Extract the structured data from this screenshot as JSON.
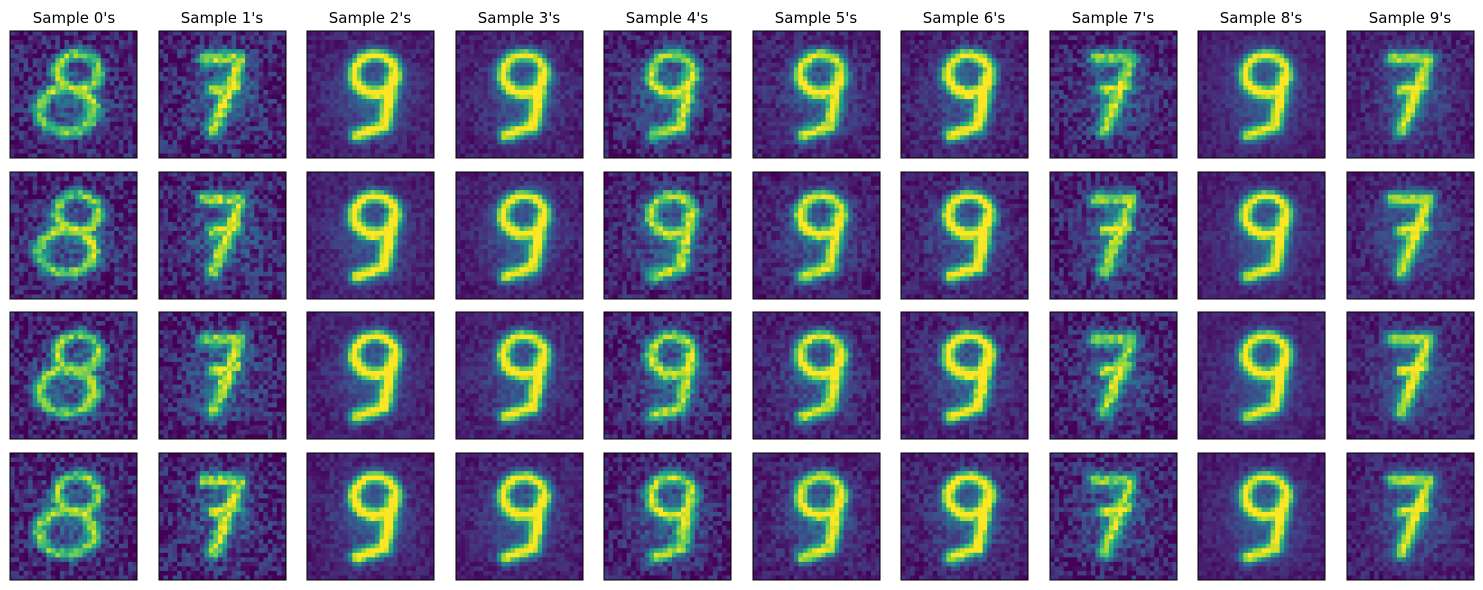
{
  "chart_data": {
    "type": "heatmap",
    "layout": {
      "rows": 4,
      "cols": 10
    },
    "image_size": [
      28,
      28
    ],
    "colormap": "viridis",
    "axes_ticks": "none",
    "columns": [
      {
        "title": "Sample 0's",
        "digit_style": "open-8",
        "brightness": 0.72,
        "noise": 0.3,
        "seed": 11
      },
      {
        "title": "Sample 1's",
        "digit_style": "7-like",
        "brightness": 0.78,
        "noise": 0.32,
        "seed": 23
      },
      {
        "title": "Sample 2's",
        "digit_style": "9",
        "brightness": 1.0,
        "noise": 0.14,
        "seed": 37
      },
      {
        "title": "Sample 3's",
        "digit_style": "9",
        "brightness": 0.95,
        "noise": 0.15,
        "seed": 41
      },
      {
        "title": "Sample 4's",
        "digit_style": "9",
        "brightness": 0.8,
        "noise": 0.26,
        "seed": 53
      },
      {
        "title": "Sample 5's",
        "digit_style": "9",
        "brightness": 0.9,
        "noise": 0.18,
        "seed": 67
      },
      {
        "title": "Sample 6's",
        "digit_style": "9",
        "brightness": 0.98,
        "noise": 0.18,
        "seed": 79
      },
      {
        "title": "Sample 7's",
        "digit_style": "7-like",
        "brightness": 0.75,
        "noise": 0.28,
        "seed": 83
      },
      {
        "title": "Sample 8's",
        "digit_style": "9",
        "brightness": 0.93,
        "noise": 0.12,
        "seed": 97
      },
      {
        "title": "Sample 9's",
        "digit_style": "7-like",
        "brightness": 0.82,
        "noise": 0.18,
        "seed": 101
      }
    ]
  }
}
